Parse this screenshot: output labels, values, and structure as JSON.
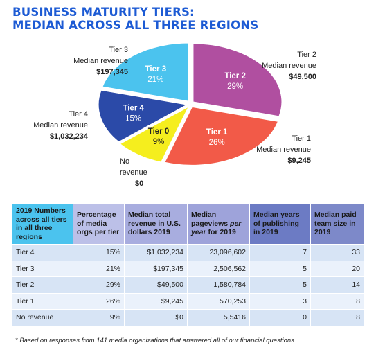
{
  "title_line1": "BUSINESS MATURITY TIERS:",
  "title_line2": "MEDIAN ACROSS ALL THREE REGIONS",
  "chart_data": [
    {
      "type": "pie",
      "categories": [
        "Tier 2",
        "Tier 1",
        "Tier 0",
        "Tier 4",
        "Tier 3"
      ],
      "values": [
        29,
        26,
        9,
        15,
        21
      ],
      "unit": "%",
      "slice_labels": [
        "Tier 2",
        "Tier 1",
        "Tier 0",
        "Tier 4",
        "Tier 3"
      ],
      "slice_values_text": [
        "29%",
        "26%",
        "9%",
        "15%",
        "21%"
      ],
      "colors": [
        "#b04fa0",
        "#f25a48",
        "#f5ee1e",
        "#2b4aa8",
        "#4bc3ee"
      ],
      "slice_text_colors": [
        "#ffffff",
        "#ffffff",
        "#222222",
        "#ffffff",
        "#ffffff"
      ],
      "callouts": [
        {
          "line1": "Tier 2",
          "line2": "Median revenue",
          "line3": "$49,500"
        },
        {
          "line1": "Tier 1",
          "line2": "Median revenue",
          "line3": "$9,245"
        },
        {
          "line1": "No",
          "line2": "revenue",
          "line3": "$0"
        },
        {
          "line1": "Tier 4",
          "line2": "Median revenue",
          "line3": "$1,032,234"
        },
        {
          "line1": "Tier 3",
          "line2": "Median revenue",
          "line3": "$197,345"
        }
      ]
    },
    {
      "type": "table",
      "columns": [
        "2019 Numbers across all tiers in all three regions",
        "Percentage of media orgs per tier",
        "Median total revenue in U.S. dollars 2019",
        "Median pageviews per year for 2019",
        "Median years of publishing in 2019",
        "Median paid team size in 2019"
      ],
      "rows": [
        [
          "Tier 4",
          "15%",
          "$1,032,234",
          "23,096,602",
          "7",
          "33"
        ],
        [
          "Tier 3",
          "21%",
          "$197,345",
          "2,506,562",
          "5",
          "20"
        ],
        [
          "Tier 2",
          "29%",
          "$49,500",
          "1,580,784",
          "5",
          "14"
        ],
        [
          "Tier 1",
          "26%",
          "$9,245",
          "570,253",
          "3",
          "8"
        ],
        [
          "No revenue",
          "9%",
          "$0",
          "5,5416",
          "0",
          "8"
        ]
      ]
    }
  ],
  "table_header": {
    "col1": "2019 Numbers across all tiers in all three regions",
    "col2": "Percentage of media orgs per tier",
    "col3": "Median total revenue in U.S. dollars 2019",
    "col4_a": "Median pageviews ",
    "col4_b": "per year",
    "col4_c": " for 2019",
    "col5": "Median years of publishing in 2019",
    "col6": "Median paid team size in 2019"
  },
  "header_colors": [
    "#4bc3ee",
    "#bcc0e8",
    "#a8addf",
    "#9ea3da",
    "#6c7bc4",
    "#7d89c9"
  ],
  "footnote": "* Based on responses from 141 media organizations that answered all of our financial questions"
}
